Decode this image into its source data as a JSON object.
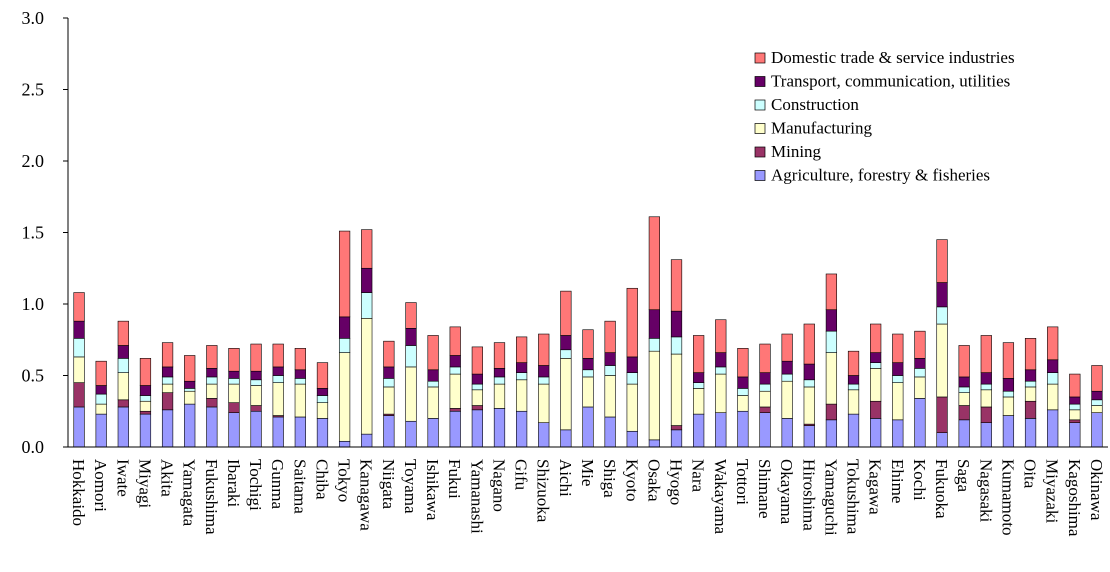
{
  "chart_data": {
    "type": "bar",
    "stacked": true,
    "ylim": [
      0,
      3.0
    ],
    "yticks": [
      "0.0",
      "0.5",
      "1.0",
      "1.5",
      "2.0",
      "2.5",
      "3.0"
    ],
    "grid": false,
    "legend_position": "top-right",
    "categories": [
      "Hokkaido",
      "Aomori",
      "Iwate",
      "Miyagi",
      "Akita",
      "Yamagata",
      "Fukushima",
      "Ibaraki",
      "Tochigi",
      "Gunma",
      "Saitama",
      "Chiba",
      "Tokyo",
      "Kanagawa",
      "Niigata",
      "Toyama",
      "Ishikawa",
      "Fukui",
      "Yamanashi",
      "Nagano",
      "Gifu",
      "Shizuoka",
      "Aichi",
      "Mie",
      "Shiga",
      "Kyoto",
      "Osaka",
      "Hyogo",
      "Nara",
      "Wakayama",
      "Tottori",
      "Shimane",
      "Okayama",
      "Hiroshima",
      "Yamaguchi",
      "Tokushima",
      "Kagawa",
      "Ehime",
      "Kochi",
      "Fukuoka",
      "Saga",
      "Nagasaki",
      "Kumamoto",
      "Oita",
      "Miyazaki",
      "Kagoshima",
      "Okinawa"
    ],
    "series": [
      {
        "name": "Agriculture, forestry & fisheries",
        "color": "#9999ff",
        "values": [
          0.28,
          0.23,
          0.28,
          0.23,
          0.26,
          0.3,
          0.28,
          0.24,
          0.25,
          0.21,
          0.21,
          0.2,
          0.04,
          0.09,
          0.22,
          0.18,
          0.2,
          0.25,
          0.26,
          0.27,
          0.25,
          0.17,
          0.12,
          0.28,
          0.21,
          0.11,
          0.05,
          0.12,
          0.23,
          0.24,
          0.25,
          0.24,
          0.2,
          0.15,
          0.19,
          0.23,
          0.2,
          0.19,
          0.34,
          0.1,
          0.19,
          0.17,
          0.22,
          0.2,
          0.26,
          0.17,
          0.24
        ]
      },
      {
        "name": "Mining",
        "color": "#993366",
        "values": [
          0.17,
          0.0,
          0.05,
          0.02,
          0.12,
          0.0,
          0.06,
          0.07,
          0.04,
          0.01,
          0.0,
          0.0,
          0.0,
          0.0,
          0.01,
          0.0,
          0.0,
          0.02,
          0.03,
          0.0,
          0.0,
          0.0,
          0.0,
          0.0,
          0.0,
          0.0,
          0.0,
          0.03,
          0.0,
          0.0,
          0.0,
          0.04,
          0.0,
          0.01,
          0.11,
          0.0,
          0.12,
          0.0,
          0.0,
          0.25,
          0.1,
          0.11,
          0.0,
          0.12,
          0.0,
          0.02,
          0.0
        ]
      },
      {
        "name": "Manufacturing",
        "color": "#ffffcc",
        "values": [
          0.18,
          0.07,
          0.19,
          0.07,
          0.06,
          0.09,
          0.1,
          0.13,
          0.14,
          0.23,
          0.23,
          0.11,
          0.62,
          0.81,
          0.19,
          0.38,
          0.22,
          0.24,
          0.11,
          0.17,
          0.22,
          0.27,
          0.5,
          0.21,
          0.29,
          0.33,
          0.62,
          0.5,
          0.18,
          0.27,
          0.11,
          0.11,
          0.26,
          0.26,
          0.36,
          0.17,
          0.23,
          0.26,
          0.15,
          0.51,
          0.09,
          0.12,
          0.13,
          0.1,
          0.18,
          0.07,
          0.05
        ]
      },
      {
        "name": "Construction",
        "color": "#ccffff",
        "values": [
          0.13,
          0.07,
          0.1,
          0.04,
          0.05,
          0.02,
          0.05,
          0.04,
          0.04,
          0.05,
          0.04,
          0.05,
          0.1,
          0.18,
          0.06,
          0.15,
          0.04,
          0.05,
          0.04,
          0.05,
          0.05,
          0.05,
          0.06,
          0.05,
          0.07,
          0.08,
          0.09,
          0.12,
          0.04,
          0.05,
          0.05,
          0.05,
          0.05,
          0.05,
          0.15,
          0.04,
          0.04,
          0.05,
          0.06,
          0.12,
          0.04,
          0.04,
          0.04,
          0.04,
          0.08,
          0.04,
          0.04
        ]
      },
      {
        "name": "Transport, communication, utilities",
        "color": "#660066",
        "values": [
          0.12,
          0.06,
          0.09,
          0.07,
          0.07,
          0.05,
          0.06,
          0.05,
          0.06,
          0.06,
          0.06,
          0.05,
          0.15,
          0.17,
          0.08,
          0.12,
          0.08,
          0.08,
          0.07,
          0.06,
          0.07,
          0.08,
          0.1,
          0.08,
          0.09,
          0.11,
          0.2,
          0.18,
          0.07,
          0.1,
          0.08,
          0.08,
          0.09,
          0.11,
          0.15,
          0.06,
          0.07,
          0.09,
          0.07,
          0.17,
          0.07,
          0.08,
          0.09,
          0.08,
          0.09,
          0.05,
          0.06
        ]
      },
      {
        "name": "Domestic trade & service industries",
        "color": "#ff7777",
        "values": [
          0.2,
          0.17,
          0.17,
          0.19,
          0.17,
          0.18,
          0.16,
          0.16,
          0.19,
          0.16,
          0.15,
          0.18,
          0.6,
          0.27,
          0.18,
          0.18,
          0.24,
          0.2,
          0.19,
          0.18,
          0.18,
          0.22,
          0.31,
          0.2,
          0.22,
          0.48,
          0.65,
          0.36,
          0.26,
          0.23,
          0.2,
          0.2,
          0.19,
          0.28,
          0.25,
          0.17,
          0.2,
          0.2,
          0.19,
          0.3,
          0.22,
          0.26,
          0.25,
          0.22,
          0.23,
          0.16,
          0.18
        ]
      }
    ]
  }
}
